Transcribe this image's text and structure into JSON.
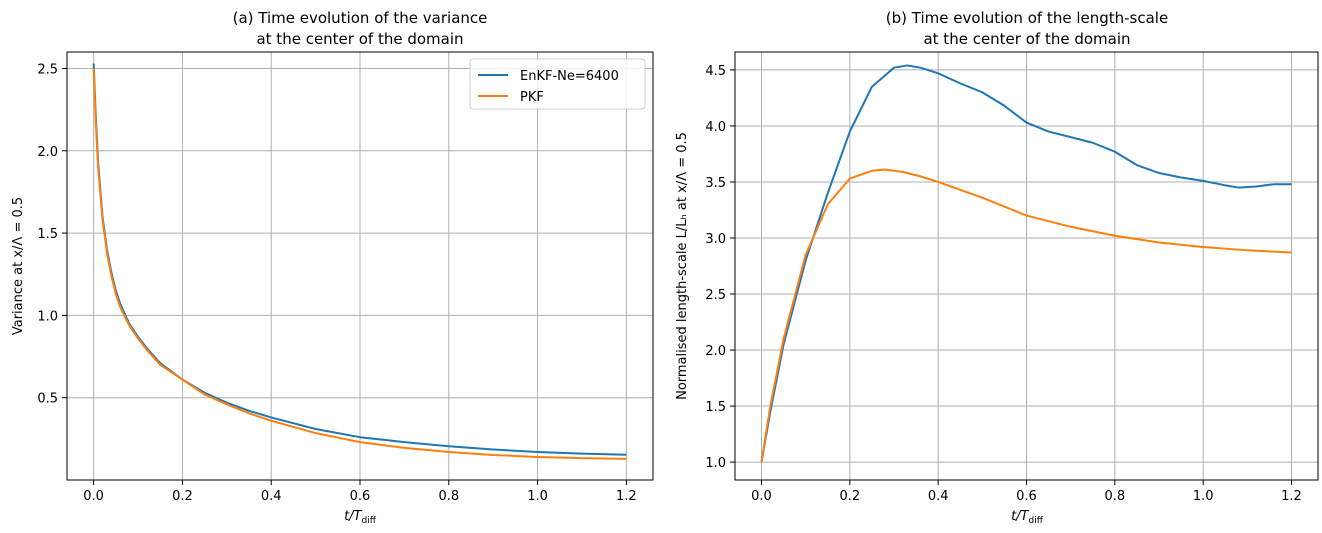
{
  "chart_data": [
    {
      "type": "line",
      "title_line1": "(a) Time evolution of the variance",
      "title_line2": "at the center of the domain",
      "xlabel_main": "t/T",
      "xlabel_sub": "diff",
      "ylabel": "Variance at x/Λ = 0.5",
      "xlim": [
        -0.06,
        1.26
      ],
      "ylim": [
        0.0,
        2.6
      ],
      "xticks": [
        0.0,
        0.2,
        0.4,
        0.6,
        0.8,
        1.0,
        1.2
      ],
      "xtick_labels": [
        "0.0",
        "0.2",
        "0.4",
        "0.6",
        "0.8",
        "1.0",
        "1.2"
      ],
      "yticks": [
        0.5,
        1.0,
        1.5,
        2.0,
        2.5
      ],
      "ytick_labels": [
        "0.5",
        "1.0",
        "1.5",
        "2.0",
        "2.5"
      ],
      "grid": true,
      "legend_position": "top-right",
      "series": [
        {
          "name": "EnKF-Ne=6400",
          "color": "#1f77b4",
          "x": [
            0.0,
            0.005,
            0.01,
            0.02,
            0.03,
            0.04,
            0.05,
            0.06,
            0.08,
            0.1,
            0.12,
            0.15,
            0.2,
            0.25,
            0.3,
            0.35,
            0.4,
            0.5,
            0.6,
            0.7,
            0.8,
            0.9,
            1.0,
            1.1,
            1.2
          ],
          "y": [
            2.53,
            2.2,
            1.93,
            1.6,
            1.4,
            1.26,
            1.15,
            1.07,
            0.95,
            0.87,
            0.8,
            0.71,
            0.61,
            0.53,
            0.47,
            0.42,
            0.38,
            0.31,
            0.26,
            0.23,
            0.205,
            0.185,
            0.17,
            0.16,
            0.153
          ]
        },
        {
          "name": "PKF",
          "color": "#ff7f0e",
          "x": [
            0.0,
            0.005,
            0.01,
            0.02,
            0.03,
            0.04,
            0.05,
            0.06,
            0.08,
            0.1,
            0.12,
            0.15,
            0.2,
            0.25,
            0.3,
            0.35,
            0.4,
            0.5,
            0.6,
            0.7,
            0.8,
            0.9,
            1.0,
            1.1,
            1.2
          ],
          "y": [
            2.5,
            2.16,
            1.9,
            1.58,
            1.38,
            1.24,
            1.13,
            1.05,
            0.94,
            0.86,
            0.79,
            0.7,
            0.61,
            0.52,
            0.46,
            0.405,
            0.36,
            0.285,
            0.23,
            0.195,
            0.17,
            0.152,
            0.14,
            0.133,
            0.128
          ]
        }
      ]
    },
    {
      "type": "line",
      "title_line1": "(b) Time evolution of the length-scale",
      "title_line2": "at the center of the domain",
      "xlabel_main": "t/T",
      "xlabel_sub": "diff",
      "ylabel": "Normalised length-scale L/Lₕ at x/Λ = 0.5",
      "xlim": [
        -0.06,
        1.26
      ],
      "ylim": [
        0.84,
        4.66
      ],
      "xticks": [
        0.0,
        0.2,
        0.4,
        0.6,
        0.8,
        1.0,
        1.2
      ],
      "xtick_labels": [
        "0.0",
        "0.2",
        "0.4",
        "0.6",
        "0.8",
        "1.0",
        "1.2"
      ],
      "yticks": [
        1.0,
        1.5,
        2.0,
        2.5,
        3.0,
        3.5,
        4.0,
        4.5
      ],
      "ytick_labels": [
        "1.0",
        "1.5",
        "2.0",
        "2.5",
        "3.0",
        "3.5",
        "4.0",
        "4.5"
      ],
      "grid": true,
      "series": [
        {
          "color": "#1f77b4",
          "x": [
            0.0,
            0.02,
            0.05,
            0.1,
            0.15,
            0.2,
            0.25,
            0.3,
            0.33,
            0.36,
            0.4,
            0.45,
            0.5,
            0.55,
            0.6,
            0.65,
            0.7,
            0.75,
            0.8,
            0.85,
            0.9,
            0.95,
            1.0,
            1.05,
            1.08,
            1.12,
            1.16,
            1.2
          ],
          "y": [
            1.0,
            1.45,
            2.05,
            2.8,
            3.4,
            3.95,
            4.35,
            4.52,
            4.54,
            4.52,
            4.47,
            4.38,
            4.3,
            4.18,
            4.03,
            3.95,
            3.9,
            3.85,
            3.77,
            3.65,
            3.58,
            3.54,
            3.51,
            3.47,
            3.45,
            3.46,
            3.48,
            3.48
          ]
        },
        {
          "color": "#ff7f0e",
          "x": [
            0.0,
            0.02,
            0.05,
            0.1,
            0.15,
            0.2,
            0.25,
            0.28,
            0.32,
            0.36,
            0.4,
            0.45,
            0.5,
            0.6,
            0.7,
            0.8,
            0.9,
            1.0,
            1.1,
            1.2
          ],
          "y": [
            1.0,
            1.5,
            2.1,
            2.85,
            3.3,
            3.53,
            3.6,
            3.61,
            3.59,
            3.55,
            3.5,
            3.43,
            3.36,
            3.2,
            3.1,
            3.02,
            2.96,
            2.92,
            2.89,
            2.87
          ]
        }
      ]
    }
  ]
}
